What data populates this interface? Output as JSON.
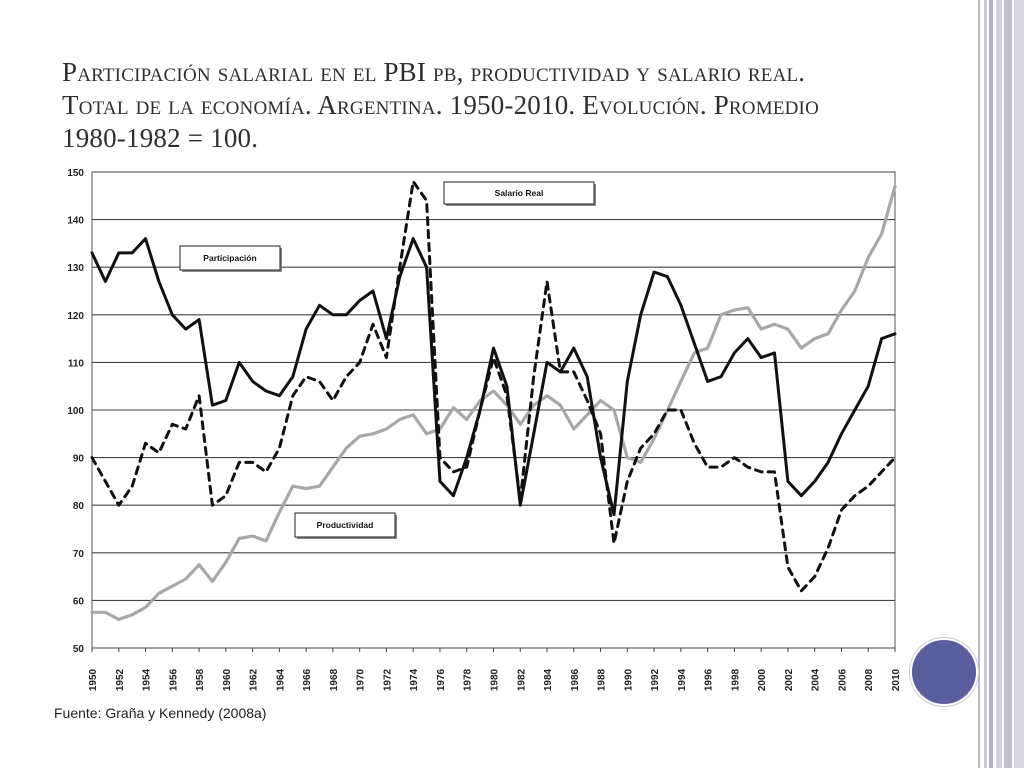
{
  "slide": {
    "title": "Participación salarial en el PBI pb, productividad y salario real. Total de la economía. Argentina. 1950-2010. Evolución. Promedio 1980-1982 = 100.",
    "source": "Fuente: Graña y Kennedy (2008a)"
  },
  "colors": {
    "participacion": "#111111",
    "salario_real": "#111111",
    "productividad": "#a8a8a8",
    "accent_circle": "#5a5e9e"
  },
  "chart_data": {
    "type": "line",
    "title": "",
    "xlabel": "",
    "ylabel": "",
    "xlim": [
      1950,
      2010
    ],
    "ylim": [
      50,
      150
    ],
    "yticks": [
      50,
      60,
      70,
      80,
      90,
      100,
      110,
      120,
      130,
      140,
      150
    ],
    "xticks": [
      1950,
      1952,
      1954,
      1956,
      1958,
      1960,
      1962,
      1964,
      1966,
      1968,
      1970,
      1972,
      1974,
      1976,
      1978,
      1980,
      1982,
      1984,
      1986,
      1988,
      1990,
      1992,
      1994,
      1996,
      1998,
      2000,
      2002,
      2004,
      2006,
      2008,
      2010
    ],
    "grid": "horizontal",
    "x": [
      1950,
      1951,
      1952,
      1953,
      1954,
      1955,
      1956,
      1957,
      1958,
      1959,
      1960,
      1961,
      1962,
      1963,
      1964,
      1965,
      1966,
      1967,
      1968,
      1969,
      1970,
      1971,
      1972,
      1973,
      1974,
      1975,
      1976,
      1977,
      1978,
      1979,
      1980,
      1981,
      1982,
      1983,
      1984,
      1985,
      1986,
      1987,
      1988,
      1989,
      1990,
      1991,
      1992,
      1993,
      1994,
      1995,
      1996,
      1997,
      1998,
      1999,
      2000,
      2001,
      2002,
      2003,
      2004,
      2005,
      2006,
      2007,
      2008,
      2009,
      2010
    ],
    "series": [
      {
        "name": "Participación",
        "style": "solid",
        "values": [
          133,
          127,
          133,
          133,
          136,
          127,
          120,
          117,
          119,
          101,
          102,
          110,
          106,
          104,
          103,
          107,
          117,
          122,
          120,
          120,
          123,
          125,
          115,
          128,
          136,
          130,
          85,
          82,
          90,
          100,
          113,
          105,
          80,
          95,
          110,
          108,
          113,
          107,
          90,
          78,
          106,
          120,
          129,
          128,
          122,
          114,
          106,
          107,
          112,
          115,
          111,
          112,
          85,
          82,
          85,
          89,
          95,
          100,
          105,
          115,
          116
        ]
      },
      {
        "name": "Salario Real",
        "style": "dashed",
        "values": [
          90,
          85,
          80,
          84,
          93,
          91,
          97,
          96,
          103,
          80,
          82,
          89,
          89,
          87,
          92,
          103,
          107,
          106,
          102,
          107,
          110,
          118,
          111,
          130,
          148,
          144,
          90,
          87,
          88,
          100,
          111,
          103,
          81,
          107,
          127,
          108,
          108,
          102,
          95,
          72,
          85,
          92,
          95,
          100,
          100,
          93,
          88,
          88,
          90,
          88,
          87,
          87,
          67,
          62,
          65,
          71,
          79,
          82,
          84,
          87,
          90
        ]
      },
      {
        "name": "Productividad",
        "style": "solid",
        "values": [
          57.5,
          57.5,
          56,
          57,
          58.5,
          61.5,
          63,
          64.5,
          67.5,
          64,
          68,
          73,
          73.5,
          72.5,
          78.5,
          84,
          83.5,
          84,
          88,
          92,
          94.5,
          95,
          96,
          98,
          99,
          95,
          96,
          100.5,
          98,
          102,
          104,
          101,
          97,
          101,
          103,
          101,
          96,
          99,
          102,
          100,
          90,
          89,
          94,
          100,
          106,
          112,
          113,
          120,
          121,
          121.5,
          117,
          118,
          117,
          113,
          115,
          116,
          121,
          125,
          132,
          137,
          147
        ]
      }
    ],
    "legend": [
      {
        "label": "Salario Real",
        "series": "Salario Real",
        "placement": "top-center"
      },
      {
        "label": "Participación",
        "series": "Participación",
        "placement": "top-left"
      },
      {
        "label": "Productividad",
        "series": "Productividad",
        "placement": "bottom-left"
      }
    ]
  }
}
